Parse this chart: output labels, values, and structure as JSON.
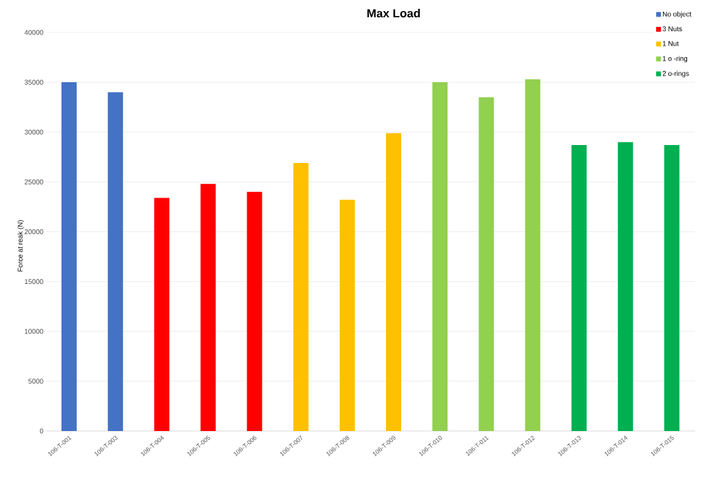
{
  "chart_data": {
    "type": "bar",
    "title": "Max Load",
    "ylabel": "Force at reak (N)",
    "categories": [
      "106-T-001",
      "106-T-003",
      "106-T-004",
      "106-T-005",
      "106-T-006",
      "106-T-007",
      "106-T-008",
      "106-T-009",
      "106-T-010",
      "106-T-011",
      "106-T-012",
      "106-T-013",
      "106-T-014",
      "106-T-015"
    ],
    "series": [
      {
        "name": "No object",
        "color": "#4472c4",
        "values": [
          35000,
          34000,
          null,
          null,
          null,
          null,
          null,
          null,
          null,
          null,
          null,
          null,
          null,
          null
        ]
      },
      {
        "name": "3 Nuts",
        "color": "#ff0000",
        "values": [
          null,
          null,
          23400,
          24800,
          24000,
          null,
          null,
          null,
          null,
          null,
          null,
          null,
          null,
          null
        ]
      },
      {
        "name": "1 Nut",
        "color": "#ffc000",
        "values": [
          null,
          null,
          null,
          null,
          null,
          26900,
          23200,
          29900,
          null,
          null,
          null,
          null,
          null,
          null
        ]
      },
      {
        "name": "1 o -ring",
        "color": "#92d050",
        "values": [
          null,
          null,
          null,
          null,
          null,
          null,
          null,
          null,
          35000,
          33500,
          35300,
          null,
          null,
          null
        ]
      },
      {
        "name": "2 o-rings",
        "color": "#00b050",
        "values": [
          null,
          null,
          null,
          null,
          null,
          null,
          null,
          null,
          null,
          null,
          null,
          28700,
          29000,
          28700
        ]
      }
    ],
    "ylim": [
      0,
      40000
    ],
    "yticks": [
      0,
      5000,
      10000,
      15000,
      20000,
      25000,
      30000,
      35000,
      40000
    ],
    "grid": "y",
    "legend": "top right"
  }
}
